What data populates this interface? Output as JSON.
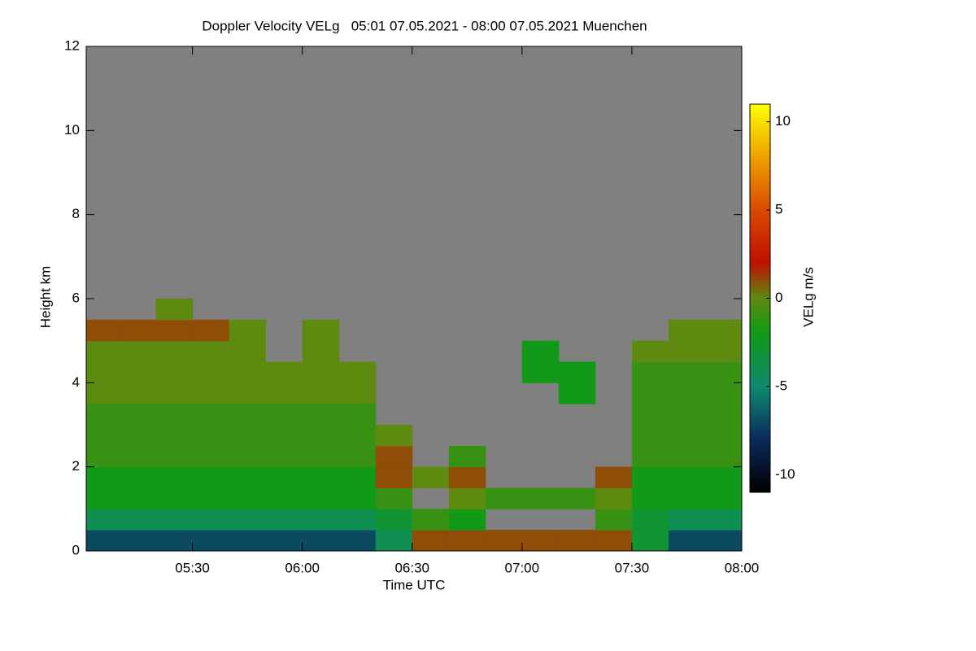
{
  "chart_data": {
    "type": "heatmap",
    "title": "Doppler Velocity VELg   05:01 07.05.2021 - 08:00 07.05.2021 Muenchen",
    "xlabel": "Time UTC",
    "ylabel": "Height km",
    "colorbar_label": "VELg m/s",
    "x": [
      "05:05",
      "05:15",
      "05:25",
      "05:35",
      "05:45",
      "05:55",
      "06:05",
      "06:15",
      "06:25",
      "06:35",
      "06:45",
      "06:55",
      "07:05",
      "07:15",
      "07:25",
      "07:35",
      "07:45",
      "07:55"
    ],
    "y": [
      0.25,
      0.75,
      1.25,
      1.75,
      2.25,
      2.75,
      3.25,
      3.75,
      4.25,
      4.75,
      5.25,
      5.75,
      6.25,
      6.75,
      7.25,
      7.75,
      8.25,
      8.75,
      9.25,
      9.75,
      10.25,
      10.75,
      11.25,
      11.75
    ],
    "values": [
      [
        -7,
        -7,
        -7,
        -7,
        -7,
        -7,
        -7,
        -7,
        -4,
        1,
        1,
        1,
        1,
        1,
        1,
        -3,
        -7,
        -7
      ],
      [
        -4,
        -4,
        -4,
        -4,
        -4,
        -4,
        -4,
        -4,
        -3,
        -1,
        -2,
        null,
        null,
        null,
        -1,
        -3,
        -4,
        -4
      ],
      [
        -2,
        -2,
        -2,
        -2,
        -2,
        -2,
        -2,
        -2,
        -1,
        null,
        0,
        -1,
        -1,
        -1,
        0,
        -2,
        -2,
        -2
      ],
      [
        -2,
        -2,
        -2,
        -2,
        -2,
        -2,
        -2,
        -2,
        1,
        0,
        1,
        null,
        null,
        null,
        1,
        -2,
        -2,
        -2
      ],
      [
        -1,
        -1,
        -1,
        -1,
        -1,
        -1,
        -1,
        -1,
        1,
        null,
        -1,
        null,
        null,
        null,
        null,
        -1,
        -1,
        -1
      ],
      [
        -1,
        -1,
        -1,
        -1,
        -1,
        -1,
        -1,
        -1,
        0,
        null,
        null,
        null,
        null,
        null,
        null,
        -1,
        -1,
        -1
      ],
      [
        -1,
        -1,
        -1,
        -1,
        -1,
        -1,
        -1,
        -1,
        null,
        null,
        null,
        null,
        null,
        null,
        null,
        -1,
        -1,
        -1
      ],
      [
        0,
        0,
        0,
        0,
        0,
        0,
        0,
        0,
        null,
        null,
        null,
        null,
        null,
        -2,
        null,
        -1,
        -1,
        -1
      ],
      [
        0,
        0,
        0,
        0,
        0,
        0,
        0,
        0,
        null,
        null,
        null,
        null,
        -2,
        -2,
        null,
        -1,
        -1,
        -1
      ],
      [
        0,
        0,
        0,
        0,
        0,
        null,
        0,
        null,
        null,
        null,
        null,
        null,
        -2,
        null,
        null,
        0,
        0,
        0
      ],
      [
        1,
        1,
        1,
        1,
        0,
        null,
        0,
        null,
        null,
        null,
        null,
        null,
        null,
        null,
        null,
        null,
        0,
        0
      ],
      [
        null,
        null,
        0,
        null,
        null,
        null,
        null,
        null,
        null,
        null,
        null,
        null,
        null,
        null,
        null,
        null,
        null,
        null
      ],
      [
        null,
        null,
        null,
        null,
        null,
        null,
        null,
        null,
        null,
        null,
        null,
        null,
        null,
        null,
        null,
        null,
        null,
        null
      ],
      [
        null,
        null,
        null,
        null,
        null,
        null,
        null,
        null,
        null,
        null,
        null,
        null,
        null,
        null,
        null,
        null,
        null,
        null
      ],
      [
        null,
        null,
        null,
        null,
        null,
        null,
        null,
        null,
        null,
        null,
        null,
        null,
        null,
        null,
        null,
        null,
        null,
        null
      ],
      [
        null,
        null,
        null,
        null,
        null,
        null,
        null,
        null,
        null,
        null,
        null,
        null,
        null,
        null,
        null,
        null,
        null,
        null
      ],
      [
        null,
        null,
        null,
        null,
        null,
        null,
        null,
        null,
        null,
        null,
        null,
        null,
        null,
        null,
        null,
        null,
        null,
        null
      ],
      [
        null,
        null,
        null,
        null,
        null,
        null,
        null,
        null,
        null,
        null,
        null,
        null,
        null,
        null,
        null,
        null,
        null,
        null
      ],
      [
        null,
        null,
        null,
        null,
        null,
        null,
        null,
        null,
        null,
        null,
        null,
        null,
        null,
        null,
        null,
        null,
        null,
        null
      ],
      [
        null,
        null,
        null,
        null,
        null,
        null,
        null,
        null,
        null,
        null,
        null,
        null,
        null,
        null,
        null,
        null,
        null,
        null
      ],
      [
        null,
        null,
        null,
        null,
        null,
        null,
        null,
        null,
        null,
        null,
        null,
        null,
        null,
        null,
        null,
        null,
        null,
        null
      ],
      [
        null,
        null,
        null,
        null,
        null,
        null,
        null,
        null,
        null,
        null,
        null,
        null,
        null,
        null,
        null,
        null,
        null,
        null
      ],
      [
        null,
        null,
        null,
        null,
        null,
        null,
        null,
        null,
        null,
        null,
        null,
        null,
        null,
        null,
        null,
        null,
        null,
        null
      ],
      [
        null,
        null,
        null,
        null,
        null,
        null,
        null,
        null,
        null,
        null,
        null,
        null,
        null,
        null,
        null,
        null,
        null,
        null
      ]
    ],
    "nodata_color": "#808080",
    "colorscale": [
      [
        -11,
        "#000000"
      ],
      [
        -8,
        "#0b2a5c"
      ],
      [
        -5,
        "#0f8a6e"
      ],
      [
        -2,
        "#109a18"
      ],
      [
        0,
        "#5e8a10"
      ],
      [
        2,
        "#c01000"
      ],
      [
        5,
        "#d84a00"
      ],
      [
        8,
        "#f0a000"
      ],
      [
        11,
        "#ffff00"
      ]
    ],
    "xlim": [
      "05:01",
      "08:00"
    ],
    "xticks": [
      "05:30",
      "06:00",
      "06:30",
      "07:00",
      "07:30",
      "08:00"
    ],
    "ylim": [
      0,
      12
    ],
    "yticks": [
      0,
      2,
      4,
      6,
      8,
      10,
      12
    ],
    "zlim": [
      -11,
      11
    ],
    "zticks": [
      -10,
      -5,
      0,
      5,
      10
    ]
  }
}
